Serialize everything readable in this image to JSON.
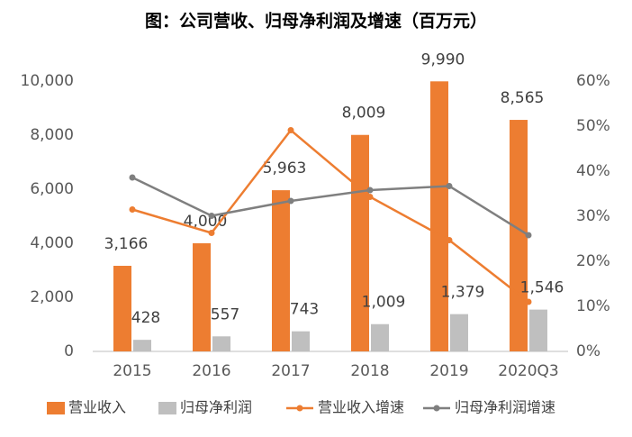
{
  "chart_data": {
    "type": "bar",
    "title": "图：公司营收、归母净利润及增速（百万元）",
    "categories": [
      "2015",
      "2016",
      "2017",
      "2018",
      "2019",
      "2020Q3"
    ],
    "series": [
      {
        "name": "营业收入",
        "type": "bar",
        "color": "#ed7d31",
        "values": [
          3166,
          4000,
          5963,
          8009,
          9990,
          8565
        ],
        "value_labels": [
          "3,166",
          "4,000",
          "5,963",
          "8,009",
          "9,990",
          "8,565"
        ]
      },
      {
        "name": "归母净利润",
        "type": "bar",
        "color": "#bfbfbf",
        "values": [
          428,
          557,
          743,
          1009,
          1379,
          1546
        ],
        "value_labels": [
          "428",
          "557",
          "743",
          "1,009",
          "1,379",
          "1,546"
        ]
      },
      {
        "name": "营业收入增速",
        "type": "line",
        "axis": "y2",
        "color": "#ed7d31",
        "values": [
          31.5,
          26.3,
          49.1,
          34.3,
          24.7,
          11
        ]
      },
      {
        "name": "归母净利润增速",
        "type": "line",
        "axis": "y2",
        "color": "#7f7f7f",
        "values": [
          38.6,
          30.1,
          33.4,
          35.8,
          36.7,
          25.8
        ]
      }
    ],
    "ylim": [
      0,
      10000
    ],
    "yticks": [
      0,
      {
        "value": 2000,
        "label": "2,000"
      },
      {
        "value": 4000,
        "label": "4,000"
      },
      {
        "value": 6000,
        "label": "6,000"
      },
      {
        "value": 8000,
        "label": "8,000"
      },
      {
        "value": 10000,
        "label": "10,000"
      }
    ],
    "y2lim": [
      0,
      60
    ],
    "y2ticks": [
      {
        "value": 0,
        "label": "0%"
      },
      {
        "value": 10,
        "label": "10%"
      },
      {
        "value": 20,
        "label": "20%"
      },
      {
        "value": 30,
        "label": "30%"
      },
      {
        "value": 40,
        "label": "40%"
      },
      {
        "value": 50,
        "label": "50%"
      },
      {
        "value": 60,
        "label": "60%"
      }
    ]
  }
}
